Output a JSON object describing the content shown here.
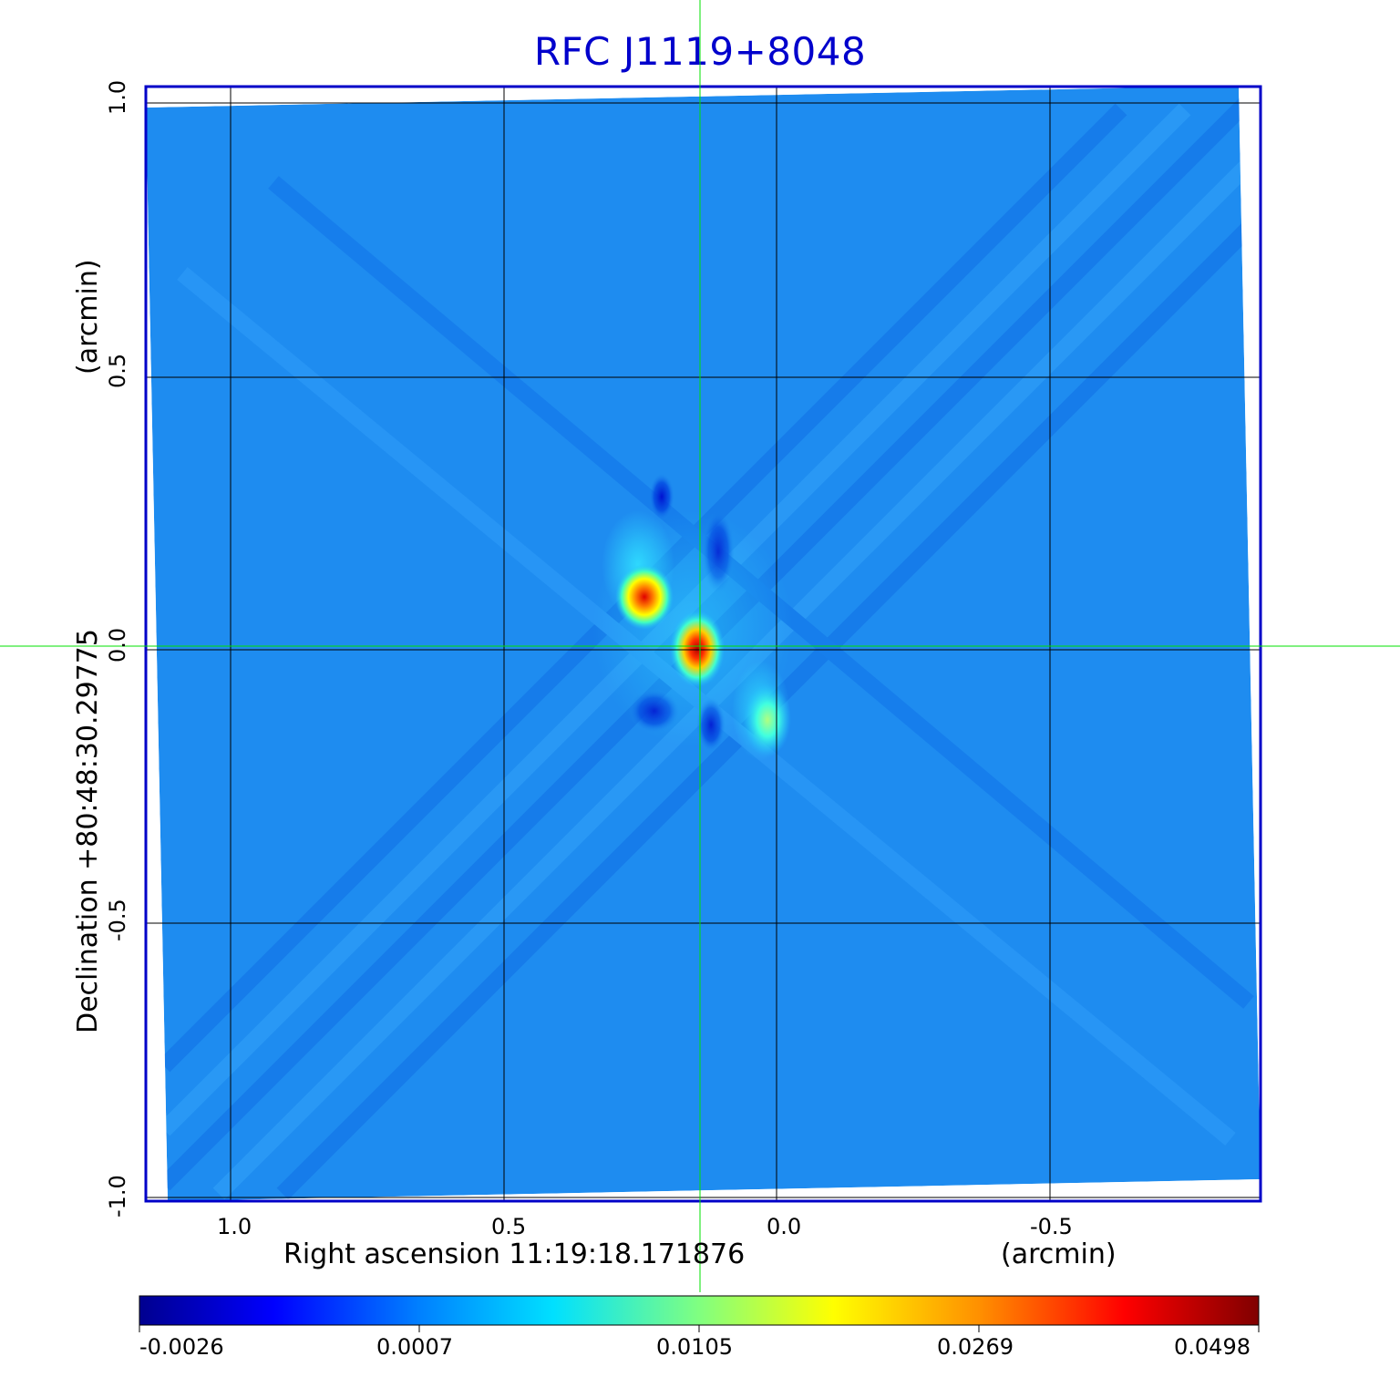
{
  "title": "RFC J1119+8048",
  "axes": {
    "x_label_left": "Right ascension  11:19:18.171876",
    "x_label_right": "(arcmin)",
    "y_label_left": "Declination  +80:48:30.29775",
    "y_label_right": "(arcmin)",
    "x_ticks": [
      "1.0",
      "0.5",
      "0.0",
      "-0.5"
    ],
    "y_ticks": [
      "1.0",
      "0.5",
      "0.0",
      "-0.5",
      "-1.0"
    ]
  },
  "colorbar": {
    "ticks": [
      "-0.0026",
      "0.0007",
      "0.0105",
      "0.0269",
      "0.0498"
    ],
    "colors": [
      "#00008f",
      "#0000ff",
      "#0080ff",
      "#00ffff",
      "#80ff80",
      "#ffff00",
      "#ff8000",
      "#ff0000",
      "#800000"
    ]
  },
  "colors": {
    "title": "#0000cc",
    "frame": "#0000c8",
    "background_map": "#1e8cf0",
    "crosshair": "#00e000",
    "grid": "#000000"
  }
}
